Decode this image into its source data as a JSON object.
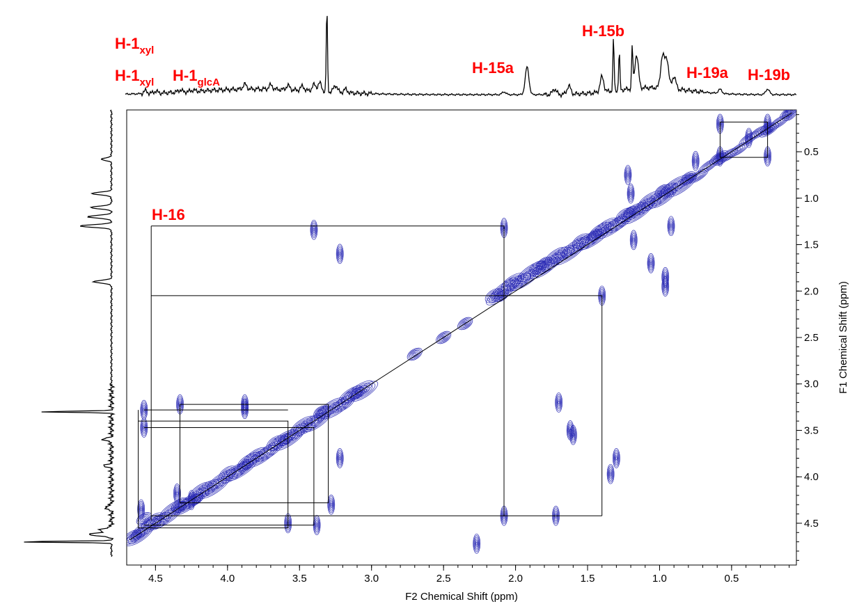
{
  "chart_data": {
    "type": "contour",
    "title": "",
    "xlabel": "F2 Chemical Shift (ppm)",
    "ylabel": "F1 Chemical Shift (ppm)",
    "xlim": [
      4.7,
      0.05
    ],
    "ylim": [
      0.05,
      4.95
    ],
    "x_ticks": [
      4.5,
      4.0,
      3.5,
      3.0,
      2.5,
      2.0,
      1.5,
      1.0,
      0.5
    ],
    "y_ticks": [
      0.5,
      1.0,
      1.5,
      2.0,
      2.5,
      3.0,
      3.5,
      4.0,
      4.5
    ],
    "x_tick_labels": [
      "4.5",
      "4.0",
      "3.5",
      "3.0",
      "2.5",
      "2.0",
      "1.5",
      "1.0",
      "0.5"
    ],
    "y_tick_labels": [
      "0.5",
      "1.0",
      "1.5",
      "2.0",
      "2.5",
      "3.0",
      "3.5",
      "4.0",
      "4.5"
    ],
    "contour_color": "#2a2ab4",
    "label_color": "#ff0000",
    "peak_labels": {
      "h1xyl_top": {
        "base": "H-1",
        "sub": "xyl"
      },
      "h1xyl_bottom": {
        "base": "H-1",
        "sub": "xyl"
      },
      "h1glca": {
        "base": "H-1",
        "sub": "glcA"
      },
      "h15a": "H-15a",
      "h15b": "H-15b",
      "h19a": "H-19a",
      "h19b": "H-19b",
      "h16": "H-16"
    },
    "diagonal_ppm": [
      [
        4.68,
        4.68
      ],
      [
        0.08,
        0.08
      ]
    ],
    "cross_peaks": [
      {
        "x": 4.58,
        "y": 3.28
      },
      {
        "x": 4.58,
        "y": 3.47
      },
      {
        "x": 4.33,
        "y": 3.22
      },
      {
        "x": 3.88,
        "y": 3.22
      },
      {
        "x": 3.88,
        "y": 3.27
      },
      {
        "x": 3.4,
        "y": 1.34
      },
      {
        "x": 3.22,
        "y": 1.6
      },
      {
        "x": 3.22,
        "y": 3.8
      },
      {
        "x": 3.28,
        "y": 4.3
      },
      {
        "x": 3.58,
        "y": 4.5
      },
      {
        "x": 3.38,
        "y": 4.52
      },
      {
        "x": 2.08,
        "y": 1.32
      },
      {
        "x": 2.08,
        "y": 4.42
      },
      {
        "x": 1.4,
        "y": 2.05
      },
      {
        "x": 1.72,
        "y": 4.42
      },
      {
        "x": 1.62,
        "y": 3.5
      },
      {
        "x": 1.6,
        "y": 3.55
      },
      {
        "x": 0.96,
        "y": 1.85
      },
      {
        "x": 0.96,
        "y": 1.95
      },
      {
        "x": 1.2,
        "y": 0.95
      },
      {
        "x": 1.18,
        "y": 1.45
      },
      {
        "x": 1.06,
        "y": 1.7
      },
      {
        "x": 0.92,
        "y": 1.3
      },
      {
        "x": 0.58,
        "y": 0.2
      },
      {
        "x": 0.58,
        "y": 0.55
      },
      {
        "x": 0.25,
        "y": 0.2
      },
      {
        "x": 0.25,
        "y": 0.55
      },
      {
        "x": 0.38,
        "y": 0.35
      },
      {
        "x": 1.3,
        "y": 3.8
      },
      {
        "x": 1.34,
        "y": 3.97
      },
      {
        "x": 1.7,
        "y": 3.2
      },
      {
        "x": 4.35,
        "y": 4.18
      },
      {
        "x": 4.25,
        "y": 4.25
      },
      {
        "x": 4.6,
        "y": 4.35
      },
      {
        "x": 2.27,
        "y": 4.72
      },
      {
        "x": 0.75,
        "y": 0.6
      },
      {
        "x": 1.22,
        "y": 0.75
      }
    ],
    "diagonal_peaks": [
      {
        "x": 4.62,
        "y": 4.62
      },
      {
        "x": 4.58,
        "y": 4.45
      },
      {
        "x": 4.33,
        "y": 4.33
      },
      {
        "x": 4.22,
        "y": 4.24
      },
      {
        "x": 3.88,
        "y": 3.88
      },
      {
        "x": 3.6,
        "y": 3.6
      },
      {
        "x": 3.35,
        "y": 3.3
      },
      {
        "x": 3.1,
        "y": 3.1
      },
      {
        "x": 2.7,
        "y": 2.68
      },
      {
        "x": 2.5,
        "y": 2.5
      },
      {
        "x": 2.35,
        "y": 2.35
      },
      {
        "x": 2.1,
        "y": 2.05
      },
      {
        "x": 1.8,
        "y": 1.7
      },
      {
        "x": 1.45,
        "y": 1.4
      },
      {
        "x": 1.2,
        "y": 1.15
      },
      {
        "x": 0.98,
        "y": 0.92
      },
      {
        "x": 0.8,
        "y": 0.78
      },
      {
        "x": 0.58,
        "y": 0.58
      },
      {
        "x": 0.25,
        "y": 0.25
      },
      {
        "x": 0.1,
        "y": 0.1
      }
    ],
    "correlation_boxes": [
      [
        [
          4.53,
          1.3
        ],
        [
          2.08,
          1.3
        ],
        [
          2.08,
          4.42
        ]
      ],
      [
        [
          4.53,
          2.05
        ],
        [
          1.4,
          2.05
        ],
        [
          1.4,
          4.42
        ]
      ],
      [
        [
          4.53,
          1.3
        ],
        [
          4.53,
          4.47
        ]
      ],
      [
        [
          4.53,
          4.42
        ],
        [
          1.4,
          4.42
        ]
      ],
      [
        [
          4.62,
          3.28
        ],
        [
          4.62,
          4.55
        ],
        [
          3.58,
          4.55
        ],
        [
          3.58,
          3.4
        ],
        [
          4.62,
          3.4
        ]
      ],
      [
        [
          4.58,
          3.47
        ],
        [
          3.4,
          3.47
        ],
        [
          3.4,
          4.52
        ],
        [
          4.58,
          4.52
        ]
      ],
      [
        [
          4.33,
          3.22
        ],
        [
          3.3,
          3.22
        ],
        [
          3.3,
          4.28
        ],
        [
          4.33,
          4.28
        ],
        [
          4.33,
          3.22
        ]
      ],
      [
        [
          4.58,
          3.28
        ],
        [
          3.58,
          3.28
        ]
      ],
      [
        [
          0.58,
          0.18
        ],
        [
          0.25,
          0.18
        ],
        [
          0.25,
          0.56
        ],
        [
          0.58,
          0.56
        ],
        [
          0.58,
          0.18
        ]
      ]
    ],
    "f2_projection_peaks": [
      {
        "ppm": 4.57,
        "h": 4
      },
      {
        "ppm": 4.5,
        "h": 3
      },
      {
        "ppm": 4.33,
        "h": 3
      },
      {
        "ppm": 4.24,
        "h": 2
      },
      {
        "ppm": 3.88,
        "h": 7
      },
      {
        "ppm": 3.7,
        "h": 6
      },
      {
        "ppm": 3.58,
        "h": 6
      },
      {
        "ppm": 3.48,
        "h": 6
      },
      {
        "ppm": 3.4,
        "h": 9
      },
      {
        "ppm": 3.36,
        "h": 12
      },
      {
        "ppm": 3.31,
        "h": 120
      },
      {
        "ppm": 3.25,
        "h": 10
      },
      {
        "ppm": 3.18,
        "h": 5
      },
      {
        "ppm": 2.08,
        "h": 4
      },
      {
        "ppm": 1.92,
        "h": 40
      },
      {
        "ppm": 1.73,
        "h": 8
      },
      {
        "ppm": 1.63,
        "h": 12
      },
      {
        "ppm": 1.4,
        "h": 22
      },
      {
        "ppm": 1.32,
        "h": 75
      },
      {
        "ppm": 1.28,
        "h": 55
      },
      {
        "ppm": 1.19,
        "h": 60
      },
      {
        "ppm": 1.16,
        "h": 48
      },
      {
        "ppm": 0.98,
        "h": 45
      },
      {
        "ppm": 0.95,
        "h": 42
      },
      {
        "ppm": 0.9,
        "h": 18
      },
      {
        "ppm": 0.58,
        "h": 6
      },
      {
        "ppm": 0.25,
        "h": 8
      }
    ],
    "f1_projection_peaks": [
      {
        "ppm": 0.58,
        "h": 14
      },
      {
        "ppm": 0.95,
        "h": 28
      },
      {
        "ppm": 1.1,
        "h": 30
      },
      {
        "ppm": 1.3,
        "h": 45
      },
      {
        "ppm": 1.2,
        "h": 35
      },
      {
        "ppm": 1.9,
        "h": 26
      },
      {
        "ppm": 3.3,
        "h": 105
      },
      {
        "ppm": 3.6,
        "h": 12
      },
      {
        "ppm": 3.88,
        "h": 10
      },
      {
        "ppm": 4.33,
        "h": 10
      },
      {
        "ppm": 4.57,
        "h": 18
      },
      {
        "ppm": 4.62,
        "h": 35
      },
      {
        "ppm": 4.7,
        "h": 140
      }
    ]
  }
}
